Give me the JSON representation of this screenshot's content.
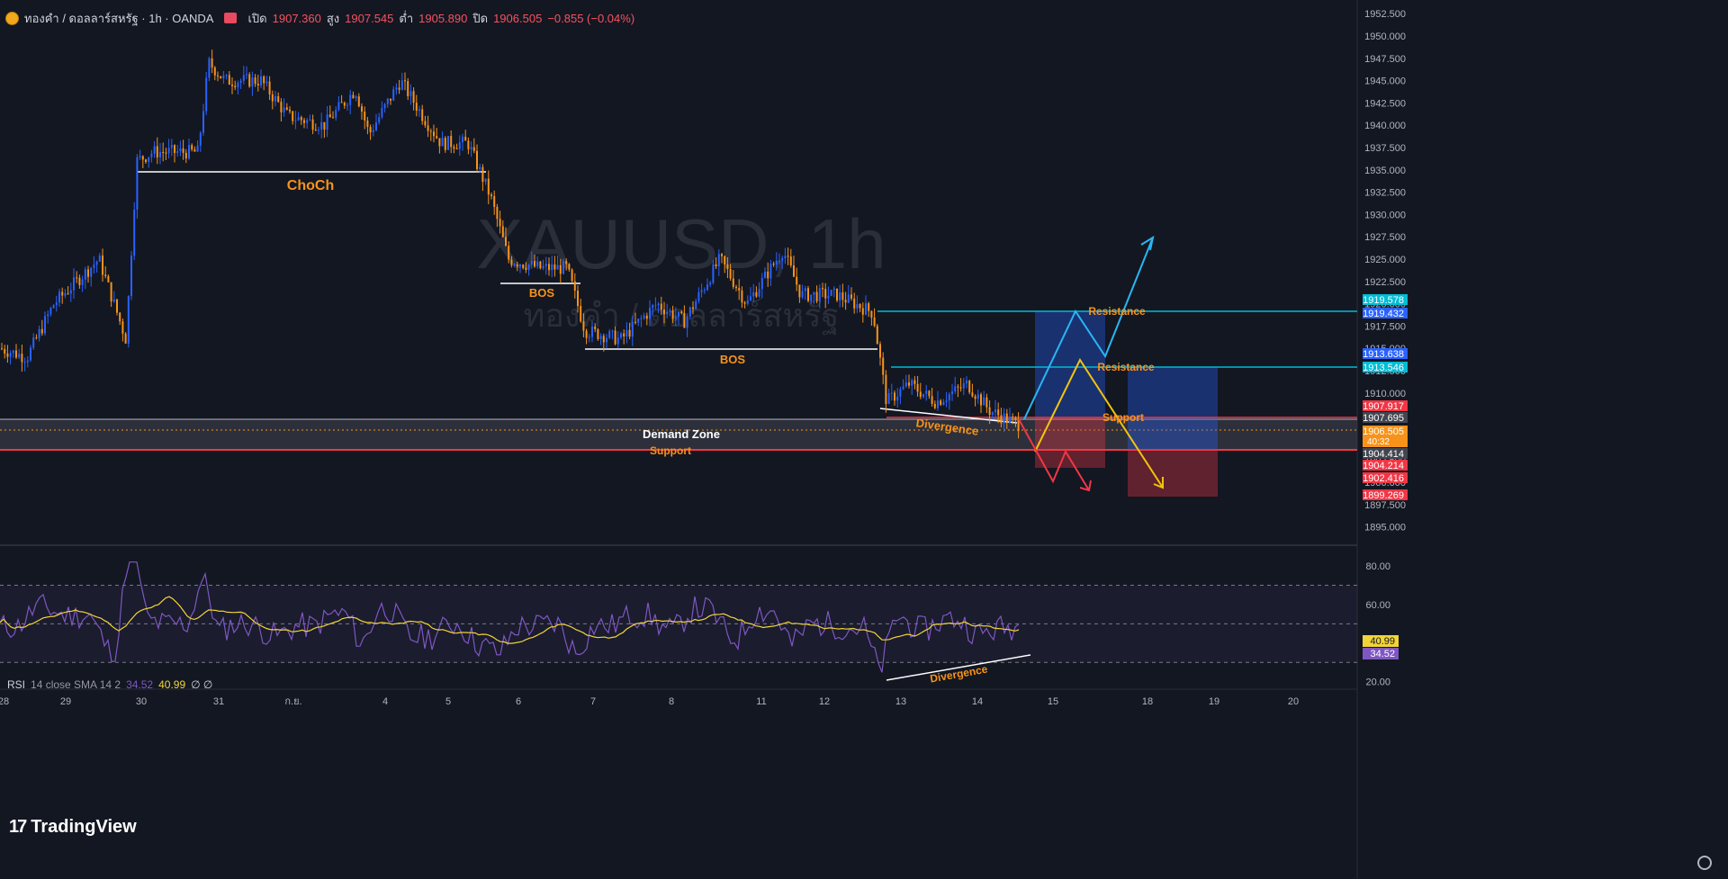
{
  "header": {
    "symbol": "ทองคำ / ดอลลาร์สหรัฐ · 1h · OANDA",
    "open_label": "เปิด",
    "open": "1907.360",
    "high_label": "สูง",
    "high": "1907.545",
    "low_label": "ต่ำ",
    "low": "1905.890",
    "close_label": "ปิด",
    "close": "1906.505",
    "change": "−0.855 (−0.04%)"
  },
  "watermark": {
    "line1": "XAUUSD, 1h",
    "line2": "ทองคำ / ดอลลาร์สหรัฐ"
  },
  "rsi_header": {
    "name": "RSI",
    "params": "14 close SMA 14 2",
    "rsi": "34.52",
    "sma": "40.99",
    "extra": "∅ ∅"
  },
  "branding": {
    "logo_text": "TradingView"
  },
  "colors": {
    "bull": "#2962ff",
    "bear": "#f7931a",
    "rsi_line": "#7e57c2",
    "rsi_ma": "#f1d43a",
    "resistance": "#00bcd4",
    "support": "#f23645",
    "path_blue": "#29b6f6",
    "path_yellow": "#f1c40f",
    "path_red": "#f23645",
    "label_orange": "#f7931a"
  },
  "chart_data": [
    {
      "type": "candlestick",
      "title": "XAUUSD, 1h",
      "x": [
        "28",
        "29",
        "30",
        "31",
        "ก.ย.",
        "4",
        "5",
        "6",
        "7",
        "8",
        "11",
        "12",
        "13",
        "14",
        "15",
        "18",
        "19",
        "20"
      ],
      "ylim": [
        1893.0,
        1953.5
      ],
      "y_ticks": [
        "1952.500",
        "1950.000",
        "1947.500",
        "1945.000",
        "1942.500",
        "1940.000",
        "1937.500",
        "1935.000",
        "1932.500",
        "1930.000",
        "1927.500",
        "1925.000",
        "1922.500",
        "1920.000",
        "1917.500",
        "1915.000",
        "1912.500",
        "1910.000",
        "1907.500",
        "1905.000",
        "1902.500",
        "1900.000",
        "1897.500",
        "1895.000"
      ],
      "series": [
        {
          "name": "candles",
          "values": [
            {
              "x": "28",
              "y": 1916.0
            },
            {
              "x": "29",
              "y": 1923.0
            },
            {
              "x": "30",
              "y": 1938.0
            },
            {
              "x": "31",
              "y": 1944.0
            },
            {
              "x": "ก.ย.",
              "y": 1940.0
            },
            {
              "x": "4",
              "y": 1943.0
            },
            {
              "x": "5",
              "y": 1937.0
            },
            {
              "x": "6",
              "y": 1925.0
            },
            {
              "x": "7",
              "y": 1916.0
            },
            {
              "x": "8",
              "y": 1922.0
            },
            {
              "x": "11",
              "y": 1925.0
            },
            {
              "x": "12",
              "y": 1919.0
            },
            {
              "x": "13",
              "y": 1911.0
            },
            {
              "x": "14",
              "y": 1908.0
            }
          ]
        }
      ],
      "annotations": [
        {
          "label": "ChoCh",
          "y": 1935.1
        },
        {
          "label": "BOS",
          "y": 1922.8
        },
        {
          "label": "BOS",
          "y": 1916.9
        },
        {
          "label": "Demand Zone"
        },
        {
          "label": "Support",
          "y": 1904.2
        },
        {
          "label": "Divergence"
        },
        {
          "label": "Resistance",
          "y": 1919.5
        },
        {
          "label": "Resistance",
          "y": 1913.6
        },
        {
          "label": "Support",
          "y": 1907.7
        }
      ],
      "price_labels": [
        {
          "value": "1919.578",
          "color": "#00bcd4"
        },
        {
          "value": "1919.432",
          "color": "#2962ff"
        },
        {
          "value": "1913.638",
          "color": "#2962ff"
        },
        {
          "value": "1913.546",
          "color": "#00bcd4"
        },
        {
          "value": "1907.917",
          "color": "#f23645"
        },
        {
          "value": "1907.695",
          "color": "#434651"
        },
        {
          "value": "1906.505",
          "color": "#f7931a",
          "countdown": "40:32"
        },
        {
          "value": "1904.414",
          "color": "#434651"
        },
        {
          "value": "1904.214",
          "color": "#f23645"
        },
        {
          "value": "1902.416",
          "color": "#f23645"
        },
        {
          "value": "1899.269",
          "color": "#f23645"
        }
      ]
    },
    {
      "type": "line",
      "title": "RSI 14 close SMA 14 2",
      "ylim": [
        15,
        85
      ],
      "y_ticks": [
        "80.00",
        "60.00",
        "40.00",
        "20.00"
      ],
      "levels": [
        70,
        50,
        30
      ],
      "series": [
        {
          "name": "RSI",
          "last": 34.52
        },
        {
          "name": "SMA",
          "last": 40.99
        }
      ],
      "annotations": [
        {
          "label": "Divergence"
        }
      ]
    }
  ]
}
